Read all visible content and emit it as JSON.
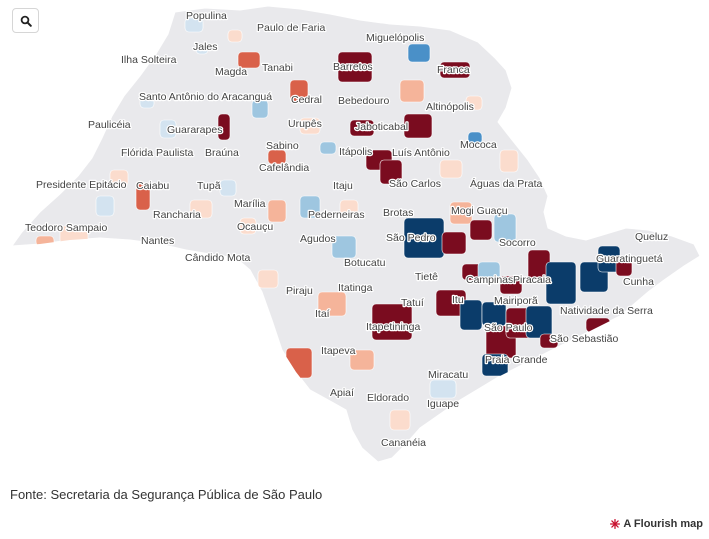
{
  "controls": {
    "search_icon": "search-icon"
  },
  "map": {
    "state_fill": "#e9e9ec",
    "palette": {
      "dark_red": "#7a0c1f",
      "red": "#d9614a",
      "light_red": "#f5b49a",
      "pale_red": "#fbdccd",
      "neutral": "#e9e9ec",
      "pale_blue": "#d3e3f0",
      "light_blue": "#9ec6e0",
      "blue": "#4a90c8",
      "dark_blue": "#0b3c6a"
    },
    "labels": [
      "Populina",
      "Paulo de Faria",
      "Jales",
      "Miguelópolis",
      "Ilha Solteira",
      "Magda",
      "Tanabi",
      "Barretos",
      "Franca",
      "Santo Antônio do Aracanguá",
      "Cedral",
      "Bebedouro",
      "Altinópolis",
      "Paulicéia",
      "Guararapes",
      "Urupês",
      "Jaboticabal",
      "Flórida Paulista",
      "Braúna",
      "Sabino",
      "Itápolis",
      "Luís Antônio",
      "Mococa",
      "Cafelândia",
      "Presidente Epitácio",
      "Caiabu",
      "Tupã",
      "Itaju",
      "São Carlos",
      "Águas da Prata",
      "Marília",
      "Mogi Guaçu",
      "Teodoro Sampaio",
      "Rancharia",
      "Ocauçu",
      "Pederneiras",
      "Brotas",
      "Nantes",
      "Agudos",
      "São Pedro",
      "Socorro",
      "Queluz",
      "Cândido Mota",
      "Botucatu",
      "Guaratinguetá",
      "Tietê",
      "Campinas",
      "Piracaia",
      "Cunha",
      "Piraju",
      "Itatinga",
      "Tatuí",
      "Itu",
      "Mairiporã",
      "Itaí",
      "Itapetininga",
      "São Paulo",
      "Natividade da Serra",
      "Itapeva",
      "São Sebastião",
      "Praia Grande",
      "Miracatu",
      "Apiaí",
      "Eldorado",
      "Iguape",
      "Cananéia"
    ]
  },
  "footer": {
    "source": "Fonte: Secretaria da Segurança Pública de São Paulo",
    "credit": "A Flourish map"
  }
}
